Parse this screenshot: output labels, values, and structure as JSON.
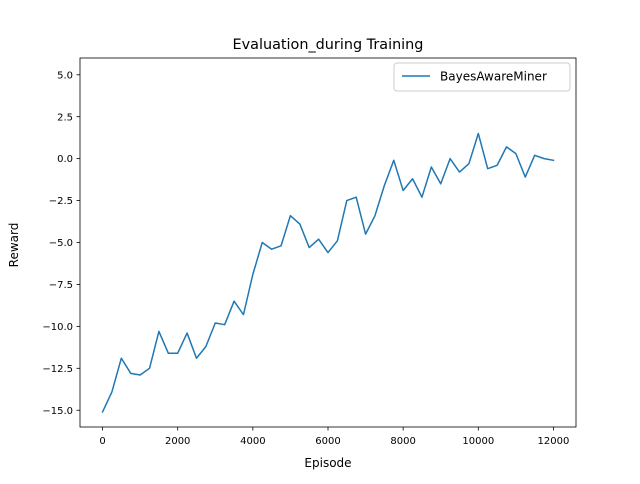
{
  "chart_data": {
    "type": "line",
    "title": "Evaluation_during Training",
    "xlabel": "Episode",
    "ylabel": "Reward",
    "xlim": [
      -600,
      12600
    ],
    "ylim": [
      -16.0,
      6.0
    ],
    "xticks": [
      0,
      2000,
      4000,
      6000,
      8000,
      10000,
      12000
    ],
    "xtick_labels": [
      "0",
      "2000",
      "4000",
      "6000",
      "8000",
      "10000",
      "12000"
    ],
    "yticks": [
      -15.0,
      -12.5,
      -10.0,
      -7.5,
      -5.0,
      -2.5,
      0.0,
      2.5,
      5.0
    ],
    "ytick_labels": [
      "−15.0",
      "−12.5",
      "−10.0",
      "−7.5",
      "−5.0",
      "−2.5",
      "0.0",
      "2.5",
      "5.0"
    ],
    "grid": false,
    "legend_position": "upper right",
    "series": [
      {
        "name": "BayesAwareMiner",
        "color": "#1f77b4",
        "x": [
          0,
          250,
          500,
          750,
          1000,
          1250,
          1500,
          1750,
          2000,
          2250,
          2500,
          2750,
          3000,
          3250,
          3500,
          3750,
          4000,
          4250,
          4500,
          4750,
          5000,
          5250,
          5500,
          5750,
          6000,
          6250,
          6500,
          6750,
          7000,
          7250,
          7500,
          7750,
          8000,
          8250,
          8500,
          8750,
          9000,
          9250,
          9500,
          9750,
          10000,
          10250,
          10500,
          10750,
          11000,
          11250,
          11500,
          11750,
          12000
        ],
        "y": [
          -15.1,
          -13.9,
          -11.9,
          -12.8,
          -12.9,
          -12.5,
          -10.3,
          -11.6,
          -11.6,
          -10.4,
          -11.9,
          -11.2,
          -9.8,
          -9.9,
          -8.5,
          -9.3,
          -6.9,
          -5.0,
          -5.4,
          -5.2,
          -3.4,
          -3.9,
          -5.3,
          -4.8,
          -5.6,
          -4.9,
          -2.5,
          -2.3,
          -4.5,
          -3.4,
          -1.6,
          -0.1,
          -1.9,
          -1.2,
          -2.3,
          -0.5,
          -1.5,
          0.0,
          -0.8,
          -0.3,
          1.5,
          -0.6,
          -0.4,
          0.7,
          0.3,
          -1.1,
          0.2,
          0.0,
          -0.1
        ]
      }
    ]
  }
}
